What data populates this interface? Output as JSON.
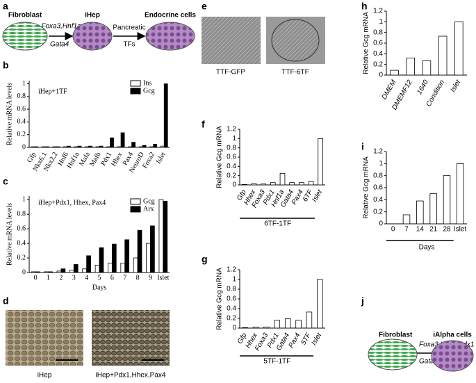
{
  "panel_labels": [
    "a",
    "b",
    "c",
    "d",
    "e",
    "f",
    "g",
    "h",
    "i",
    "j"
  ],
  "diagram_a": {
    "start": "Fibroblast",
    "arrow1_top": "Foxa3,Hnf1a",
    "arrow1_bottom": "Gata4",
    "middle": "iHep",
    "arrow2_top": "Pancreatic",
    "arrow2_bottom": "TFs",
    "end": "Endocrine cells"
  },
  "images_d": {
    "left": "iHep",
    "right": "iHep+Pdx1,Hhex,Pax4"
  },
  "images_e": {
    "left": "TTF-GFP",
    "right": "TTF-6TF"
  },
  "diagram_j": {
    "start": "Fibroblast",
    "arrow_top": "Foxa3,Hhex,Pdx1",
    "arrow_bottom": "Gata4, Pax4",
    "end": "iAlpha cells"
  },
  "chart_data": [
    {
      "type": "bar",
      "title": "iHep+1TF",
      "y_label": "Relative mRNA levels",
      "categories": [
        "Gfp",
        "Nkx6.1",
        "Nkx2.2",
        "Hnf6",
        "Hnf1a",
        "Mafa",
        "Mafb",
        "Pdx1",
        "Hhex",
        "Pax4",
        "NeuroD",
        "Foxa2",
        "Islet"
      ],
      "series": [
        {
          "name": "Ins",
          "color": "#ffffff",
          "values": [
            0.01,
            0.01,
            0.01,
            0.01,
            0.01,
            0.01,
            0.01,
            0.01,
            0.01,
            0.01,
            0.01,
            0.01,
            0.02
          ]
        },
        {
          "name": "Gcg",
          "color": "#000000",
          "values": [
            0.01,
            0.01,
            0.01,
            0.02,
            0.02,
            0.02,
            0.02,
            0.15,
            0.23,
            0.08,
            0.03,
            0.05,
            1.0
          ]
        }
      ],
      "ylim": [
        0,
        1.05
      ],
      "yticks": [
        0,
        0.2,
        0.4,
        0.6,
        0.8,
        1
      ]
    },
    {
      "type": "bar",
      "title": "iHep+Pdx1, Hhex, Pax4",
      "y_label": "Relative mRNA levels",
      "x_label": "Days",
      "categories": [
        "0",
        "1",
        "2",
        "3",
        "4",
        "5",
        "6",
        "7",
        "8",
        "9",
        "Islet"
      ],
      "series": [
        {
          "name": "Gcg",
          "color": "#ffffff",
          "values": [
            0.01,
            0.01,
            0.02,
            0.03,
            0.05,
            0.1,
            0.13,
            0.13,
            0.2,
            0.4,
            1.0
          ]
        },
        {
          "name": "Arx",
          "color": "#000000",
          "values": [
            0.01,
            0.01,
            0.05,
            0.11,
            0.23,
            0.34,
            0.39,
            0.45,
            0.58,
            0.64,
            0.98
          ]
        }
      ],
      "ylim": [
        0,
        1.05
      ],
      "yticks": [
        0,
        0.2,
        0.4,
        0.6,
        0.8,
        1
      ]
    },
    {
      "type": "bar",
      "y_label": "Relative Gcg mRNA",
      "group_label": "6TF-1TF",
      "categories": [
        "Gfp",
        "Hhex",
        "Foxa3",
        "Pdx1",
        "Hnf1a",
        "Gata4",
        "Pax4",
        "6TF",
        "Islet"
      ],
      "values": [
        0.01,
        0.03,
        0.02,
        0.05,
        0.25,
        0.05,
        0.05,
        0.07,
        1.0
      ],
      "color": "#ffffff",
      "ylim": [
        0,
        1.2
      ],
      "yticks": [
        0,
        0.2,
        0.4,
        0.6,
        0.8,
        1,
        1.2
      ]
    },
    {
      "type": "bar",
      "y_label": "Relative Gcg mRNA",
      "group_label": "5TF-1TF",
      "categories": [
        "Gfp",
        "Hhex",
        "Foxa3",
        "Pdx1",
        "Gata4",
        "Pax4",
        "5TF",
        "Islet"
      ],
      "values": [
        0.01,
        0.02,
        0.02,
        0.16,
        0.19,
        0.16,
        0.33,
        1.0
      ],
      "color": "#ffffff",
      "ylim": [
        0,
        1.2
      ],
      "yticks": [
        0,
        0.2,
        0.4,
        0.6,
        0.8,
        1,
        1.2
      ]
    },
    {
      "type": "bar",
      "y_label": "Relative Gcg mRNA",
      "categories": [
        "DMEM",
        "DMEMF12",
        "1640",
        "Condition",
        "Islet"
      ],
      "values": [
        0.09,
        0.32,
        0.27,
        0.73,
        1.0
      ],
      "color": "#ffffff",
      "ylim": [
        0,
        1.2
      ],
      "yticks": [
        0,
        0.2,
        0.4,
        0.6,
        0.8,
        1,
        1.2
      ]
    },
    {
      "type": "bar",
      "y_label": "Relative Gcg mRNA",
      "x_label": "Days",
      "categories": [
        "0",
        "7",
        "14",
        "21",
        "28",
        "islet"
      ],
      "values": [
        0,
        0.15,
        0.38,
        0.5,
        0.8,
        1.0
      ],
      "color": "#ffffff",
      "ylim": [
        0,
        1.2
      ],
      "yticks": [
        0,
        0.2,
        0.4,
        0.6,
        0.8,
        1,
        1.2
      ]
    }
  ]
}
